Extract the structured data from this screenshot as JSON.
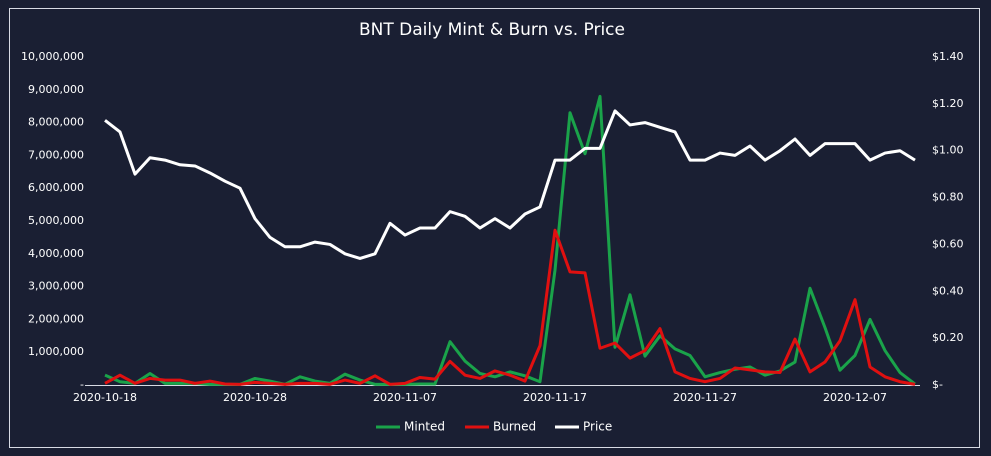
{
  "chart_data": {
    "type": "line",
    "title": "BNT Daily Mint & Burn vs. Price",
    "categories": [
      "2020-10-18",
      null,
      null,
      null,
      null,
      null,
      null,
      null,
      null,
      null,
      "2020-10-28",
      null,
      null,
      null,
      null,
      null,
      null,
      null,
      null,
      null,
      "2020-11-07",
      null,
      null,
      null,
      null,
      null,
      null,
      null,
      null,
      null,
      "2020-11-17",
      null,
      null,
      null,
      null,
      null,
      null,
      null,
      null,
      null,
      "2020-11-27",
      null,
      null,
      null,
      null,
      null,
      null,
      null,
      null,
      null,
      "2020-12-07",
      null,
      null,
      null,
      null
    ],
    "series": [
      {
        "name": "Minted",
        "color": "#1aa34a",
        "axis": "y",
        "values": [
          300000,
          100000,
          50000,
          350000,
          50000,
          50000,
          50000,
          20000,
          20000,
          20000,
          200000,
          120000,
          20000,
          250000,
          120000,
          50000,
          330000,
          150000,
          20000,
          20000,
          20000,
          30000,
          30000,
          1320000,
          730000,
          350000,
          250000,
          400000,
          280000,
          100000,
          3500000,
          8300000,
          7050000,
          8800000,
          1150000,
          2750000,
          880000,
          1500000,
          1100000,
          900000,
          250000,
          380000,
          480000,
          550000,
          300000,
          430000,
          700000,
          2950000,
          1750000,
          450000,
          900000,
          2000000,
          1050000,
          380000,
          30000
        ]
      },
      {
        "name": "Burned",
        "color": "#e01010",
        "axis": "y",
        "values": [
          50000,
          300000,
          50000,
          200000,
          150000,
          150000,
          50000,
          120000,
          30000,
          20000,
          80000,
          50000,
          20000,
          50000,
          50000,
          20000,
          150000,
          50000,
          280000,
          20000,
          50000,
          230000,
          180000,
          720000,
          300000,
          200000,
          430000,
          300000,
          120000,
          1200000,
          4720000,
          3450000,
          3420000,
          1120000,
          1280000,
          820000,
          1050000,
          1720000,
          400000,
          200000,
          100000,
          200000,
          520000,
          460000,
          400000,
          380000,
          1400000,
          400000,
          700000,
          1350000,
          2600000,
          550000,
          250000,
          100000,
          20000
        ]
      },
      {
        "name": "Price",
        "color": "#ffffff",
        "axis": "y2",
        "values": [
          1.13,
          1.08,
          0.9,
          0.97,
          0.96,
          0.94,
          0.935,
          0.905,
          0.87,
          0.84,
          0.71,
          0.63,
          0.59,
          0.59,
          0.61,
          0.6,
          0.56,
          0.54,
          0.56,
          0.69,
          0.64,
          0.67,
          0.67,
          0.74,
          0.72,
          0.67,
          0.71,
          0.67,
          0.73,
          0.76,
          0.96,
          0.96,
          1.01,
          1.01,
          1.17,
          1.11,
          1.12,
          1.1,
          1.08,
          0.96,
          0.96,
          0.99,
          0.98,
          1.02,
          0.96,
          1.0,
          1.05,
          0.98,
          1.03,
          1.03,
          1.03,
          0.96,
          0.99,
          1.0,
          0.96
        ]
      }
    ],
    "ylim": [
      0,
      10000000
    ],
    "yticks": [
      {
        "value": 0,
        "label": "-"
      },
      {
        "value": 1000000,
        "label": "1,000,000"
      },
      {
        "value": 2000000,
        "label": "2,000,000"
      },
      {
        "value": 3000000,
        "label": "3,000,000"
      },
      {
        "value": 4000000,
        "label": "4,000,000"
      },
      {
        "value": 5000000,
        "label": "5,000,000"
      },
      {
        "value": 6000000,
        "label": "6,000,000"
      },
      {
        "value": 7000000,
        "label": "7,000,000"
      },
      {
        "value": 8000000,
        "label": "8,000,000"
      },
      {
        "value": 9000000,
        "label": "9,000,000"
      },
      {
        "value": 10000000,
        "label": "10,000,000"
      }
    ],
    "y2lim": [
      0,
      1.4
    ],
    "y2ticks": [
      {
        "value": 0,
        "label": "$-"
      },
      {
        "value": 0.2,
        "label": "$0.20"
      },
      {
        "value": 0.4,
        "label": "$0.40"
      },
      {
        "value": 0.6,
        "label": "$0.60"
      },
      {
        "value": 0.8,
        "label": "$0.80"
      },
      {
        "value": 1.0,
        "label": "$1.00"
      },
      {
        "value": 1.2,
        "label": "$1.20"
      },
      {
        "value": 1.4,
        "label": "$1.40"
      }
    ],
    "grid": false,
    "legend": "bottom"
  }
}
